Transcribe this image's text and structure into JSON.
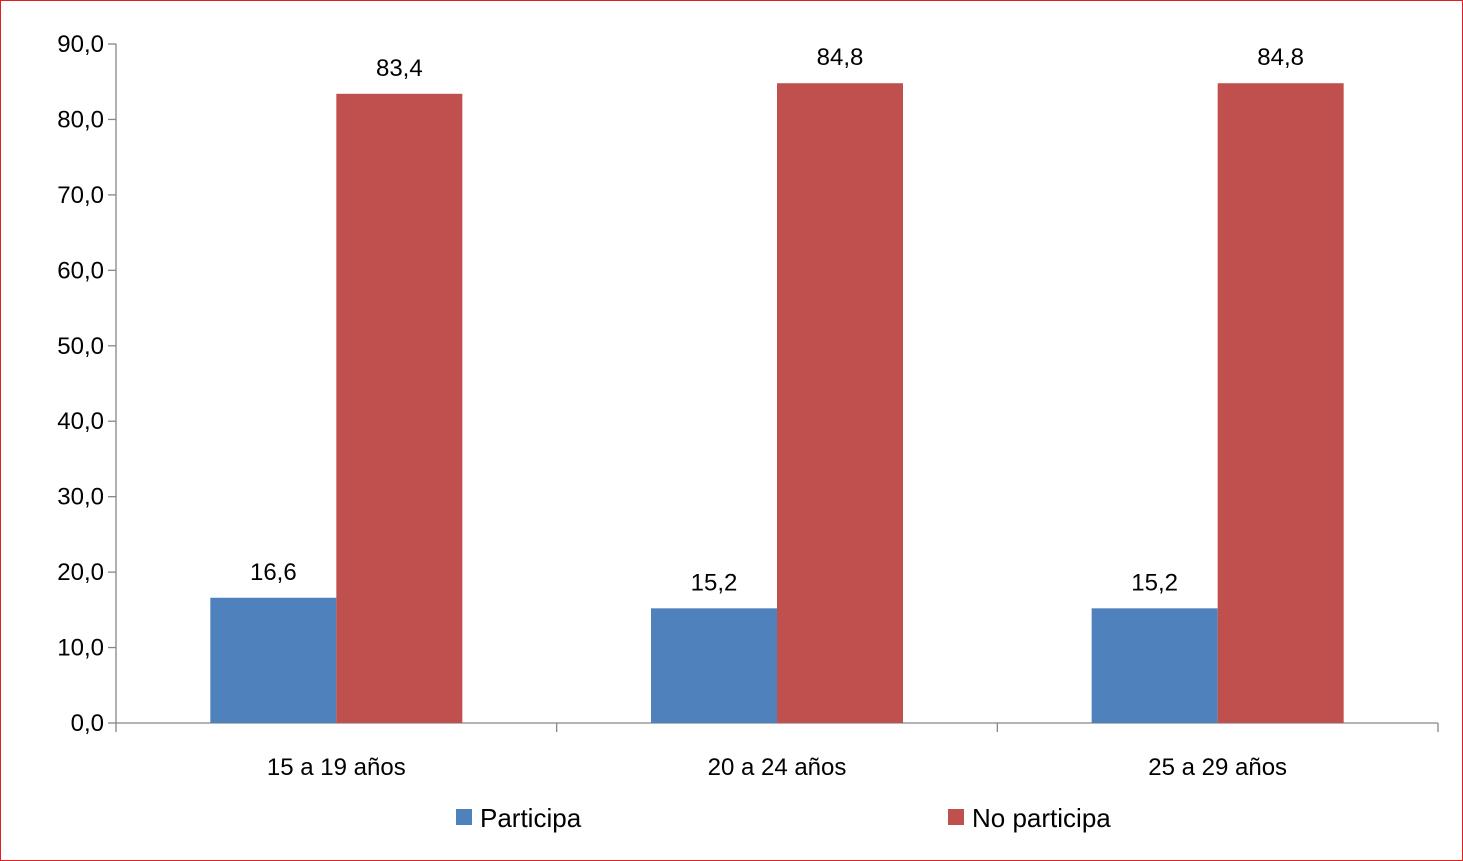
{
  "chart_data": {
    "type": "bar",
    "categories": [
      "15 a 19 años",
      "20 a 24 años",
      "25 a 29 años"
    ],
    "series": [
      {
        "name": "Participa",
        "values": [
          16.6,
          15.2,
          15.2
        ],
        "labels": [
          "16,6",
          "15,2",
          "15,2"
        ],
        "color": "#4f81bd"
      },
      {
        "name": "No participa",
        "values": [
          83.4,
          84.8,
          84.8
        ],
        "labels": [
          "83,4",
          "84,8",
          "84,8"
        ],
        "color": "#c0504d"
      }
    ],
    "ylim": [
      0,
      90
    ],
    "yticks": [
      0,
      10,
      20,
      30,
      40,
      50,
      60,
      70,
      80,
      90
    ],
    "ytick_labels": [
      "0,0",
      "10,0",
      "20,0",
      "30,0",
      "40,0",
      "50,0",
      "60,0",
      "70,0",
      "80,0",
      "90,0"
    ],
    "title": "",
    "xlabel": "",
    "ylabel": "",
    "grid": false,
    "legend_position": "bottom",
    "frame_color": "#e02020"
  }
}
